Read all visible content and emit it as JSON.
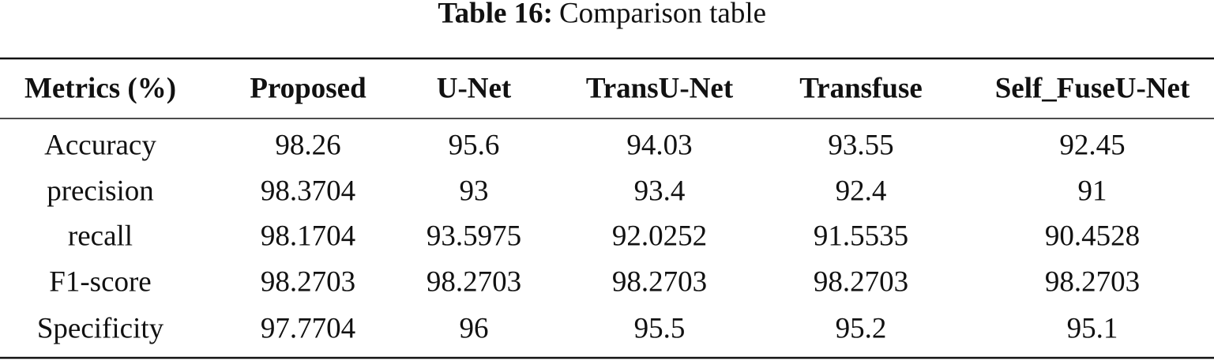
{
  "caption": {
    "label": "Table 16:",
    "text": "Comparison table"
  },
  "table": {
    "header": [
      "Metrics (%)",
      "Proposed",
      "U-Net",
      "TransU-Net",
      "Transfuse",
      "Self_FuseU-Net"
    ],
    "rows": [
      [
        "Accuracy",
        98.26,
        95.6,
        94.03,
        93.55,
        92.45
      ],
      [
        "precision",
        98.3704,
        93,
        93.4,
        92.4,
        91
      ],
      [
        "recall",
        98.1704,
        93.5975,
        92.0252,
        91.5535,
        90.4528
      ],
      [
        "F1-score",
        98.2703,
        98.2703,
        98.2703,
        98.2703,
        98.2703
      ],
      [
        "Specificity",
        97.7704,
        96,
        95.5,
        95.2,
        95.1
      ]
    ]
  }
}
